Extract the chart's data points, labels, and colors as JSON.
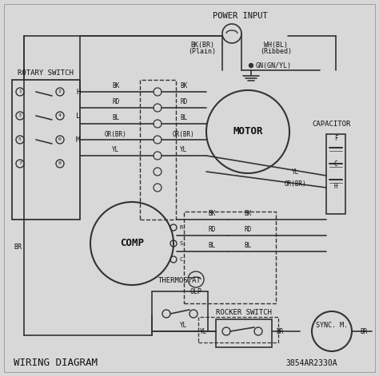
{
  "title": "WIRING DIAGRAM",
  "model": "3854AR2330A",
  "bg_color": "#d8d8d8",
  "line_color": "#333333",
  "text_color": "#111111",
  "components": {
    "power_input_label": "POWER INPUT",
    "rotary_switch_label": "ROTARY SWITCH",
    "motor_label": "MOTOR",
    "comp_label": "COMP",
    "capacitor_label": "CAPACITOR",
    "olp_label": "OLP",
    "thermostat_label": "THERMOSTAT",
    "rocker_switch_label": "ROCKER SWITCH",
    "sync_m_label": "SYNC. M."
  },
  "wire_labels": {
    "bk_br_plain": "BK(BR)\n(Plain)",
    "wh_bl_ribbed": "WH(BL)\n(Ribbed)",
    "gn_gnyl": "GN(GN/YL)",
    "H": "H",
    "L": "L",
    "M": "M",
    "BK": "BK",
    "RD": "RD",
    "BL": "BL",
    "OR_BR": "OR(BR)",
    "YL": "YL",
    "BR": "BR",
    "R": "R",
    "S": "S",
    "C": "C"
  }
}
